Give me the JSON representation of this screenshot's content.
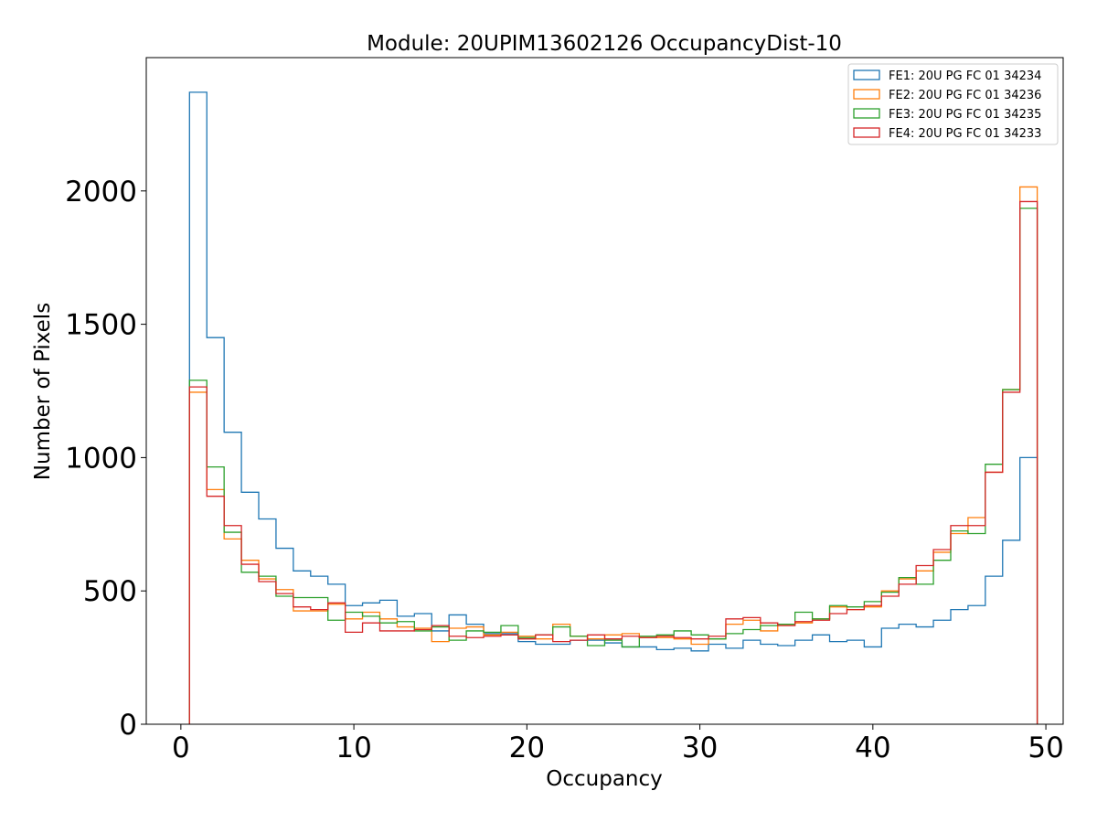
{
  "chart_data": {
    "type": "histogram",
    "title": "Module: 20UPIM13602126 OccupancyDist-10",
    "xlabel": "Occupancy",
    "ylabel": "Number of Pixels",
    "xlim": [
      -2.0,
      51.0
    ],
    "ylim": [
      0,
      2500
    ],
    "xticks": [
      0,
      10,
      20,
      30,
      40,
      50
    ],
    "yticks": [
      0,
      500,
      1000,
      1500,
      2000
    ],
    "bin_start": 0.5,
    "bin_width": 1,
    "legend_position": "upper right",
    "grid": false,
    "series": [
      {
        "name": "FE1: 20U PG FC 01 34234",
        "color": "#1f77b4",
        "values": [
          2370,
          1450,
          1095,
          870,
          770,
          660,
          575,
          555,
          525,
          445,
          455,
          465,
          405,
          415,
          350,
          410,
          375,
          340,
          340,
          310,
          300,
          300,
          315,
          315,
          305,
          290,
          290,
          280,
          285,
          275,
          300,
          285,
          315,
          300,
          295,
          315,
          335,
          310,
          315,
          290,
          360,
          375,
          365,
          390,
          430,
          445,
          555,
          690,
          1000
        ]
      },
      {
        "name": "FE2: 20U PG FC 01 34236",
        "color": "#ff7f0e",
        "values": [
          1245,
          880,
          695,
          615,
          545,
          505,
          425,
          425,
          450,
          395,
          420,
          395,
          365,
          360,
          310,
          360,
          365,
          335,
          345,
          330,
          320,
          375,
          330,
          320,
          335,
          340,
          325,
          325,
          320,
          300,
          320,
          375,
          390,
          350,
          375,
          380,
          395,
          440,
          430,
          440,
          500,
          545,
          575,
          645,
          715,
          775,
          945,
          1255,
          2015
        ]
      },
      {
        "name": "FE3: 20U PG FC 01 34235",
        "color": "#2ca02c",
        "values": [
          1290,
          965,
          720,
          570,
          555,
          480,
          475,
          475,
          390,
          420,
          405,
          380,
          385,
          350,
          365,
          315,
          350,
          345,
          370,
          325,
          335,
          365,
          330,
          295,
          315,
          290,
          330,
          335,
          350,
          335,
          320,
          340,
          355,
          370,
          375,
          420,
          395,
          445,
          440,
          460,
          495,
          550,
          525,
          615,
          725,
          715,
          975,
          1255,
          1935
        ]
      },
      {
        "name": "FE4: 20U PG FC 01 34233",
        "color": "#d62728",
        "values": [
          1265,
          855,
          745,
          600,
          535,
          490,
          440,
          430,
          455,
          345,
          380,
          350,
          350,
          355,
          370,
          330,
          325,
          330,
          335,
          320,
          335,
          310,
          315,
          335,
          320,
          330,
          325,
          330,
          325,
          320,
          330,
          395,
          400,
          380,
          370,
          385,
          390,
          415,
          430,
          445,
          480,
          525,
          595,
          655,
          745,
          745,
          945,
          1245,
          1960
        ]
      }
    ]
  }
}
